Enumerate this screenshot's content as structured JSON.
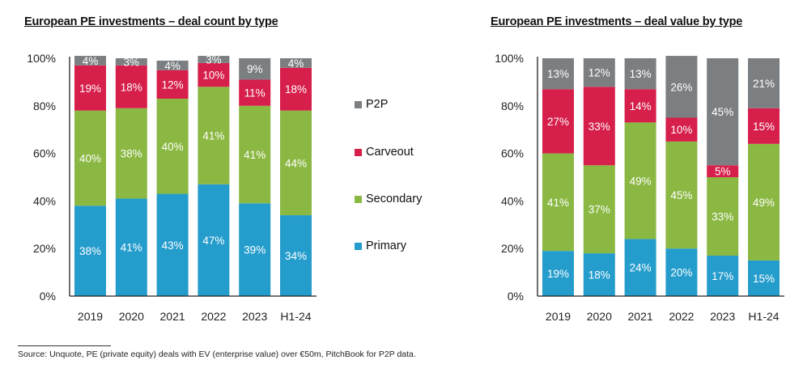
{
  "chart_data": [
    {
      "type": "bar",
      "stacked": true,
      "title": "European PE investments – deal count by type",
      "xlabel": "",
      "ylabel": "",
      "ylim": [
        0,
        100
      ],
      "yticks": [
        "0%",
        "20%",
        "40%",
        "60%",
        "80%",
        "100%"
      ],
      "categories": [
        "2019",
        "2020",
        "2021",
        "2022",
        "2023",
        "H1-24"
      ],
      "series": [
        {
          "name": "Primary",
          "color": "#259dcc",
          "values": [
            38,
            41,
            43,
            47,
            39,
            34
          ]
        },
        {
          "name": "Secondary",
          "color": "#8bb843",
          "values": [
            40,
            38,
            40,
            41,
            41,
            44
          ]
        },
        {
          "name": "Carveout",
          "color": "#d61f4b",
          "values": [
            19,
            18,
            12,
            10,
            11,
            18
          ]
        },
        {
          "name": "P2P",
          "color": "#7b7f82",
          "values": [
            4,
            3,
            4,
            3,
            9,
            4
          ]
        }
      ],
      "grid": false
    },
    {
      "type": "bar",
      "stacked": true,
      "title": "European PE investments – deal value by type",
      "xlabel": "",
      "ylabel": "",
      "ylim": [
        0,
        100
      ],
      "yticks": [
        "0%",
        "20%",
        "40%",
        "60%",
        "80%",
        "100%"
      ],
      "categories": [
        "2019",
        "2020",
        "2021",
        "2022",
        "2023",
        "H1-24"
      ],
      "series": [
        {
          "name": "Primary",
          "color": "#259dcc",
          "values": [
            19,
            18,
            24,
            20,
            17,
            15
          ]
        },
        {
          "name": "Secondary",
          "color": "#8bb843",
          "values": [
            41,
            37,
            49,
            45,
            33,
            49
          ]
        },
        {
          "name": "Carveout",
          "color": "#d61f4b",
          "values": [
            27,
            33,
            14,
            10,
            5,
            15
          ]
        },
        {
          "name": "P2P",
          "color": "#7b7f82",
          "values": [
            13,
            12,
            13,
            26,
            45,
            21
          ]
        }
      ],
      "grid": false
    }
  ],
  "legend": {
    "placement": "center-between-charts",
    "items": [
      {
        "label": "P2P",
        "color": "#7b7f82"
      },
      {
        "label": "Carveout",
        "color": "#d61f4b"
      },
      {
        "label": "Secondary",
        "color": "#8bb843"
      },
      {
        "label": "Primary",
        "color": "#259dcc"
      }
    ]
  },
  "footnote": "Source:  Unquote, PE (private equity) deals with EV (enterprise value) over €50m, PitchBook for P2P data."
}
